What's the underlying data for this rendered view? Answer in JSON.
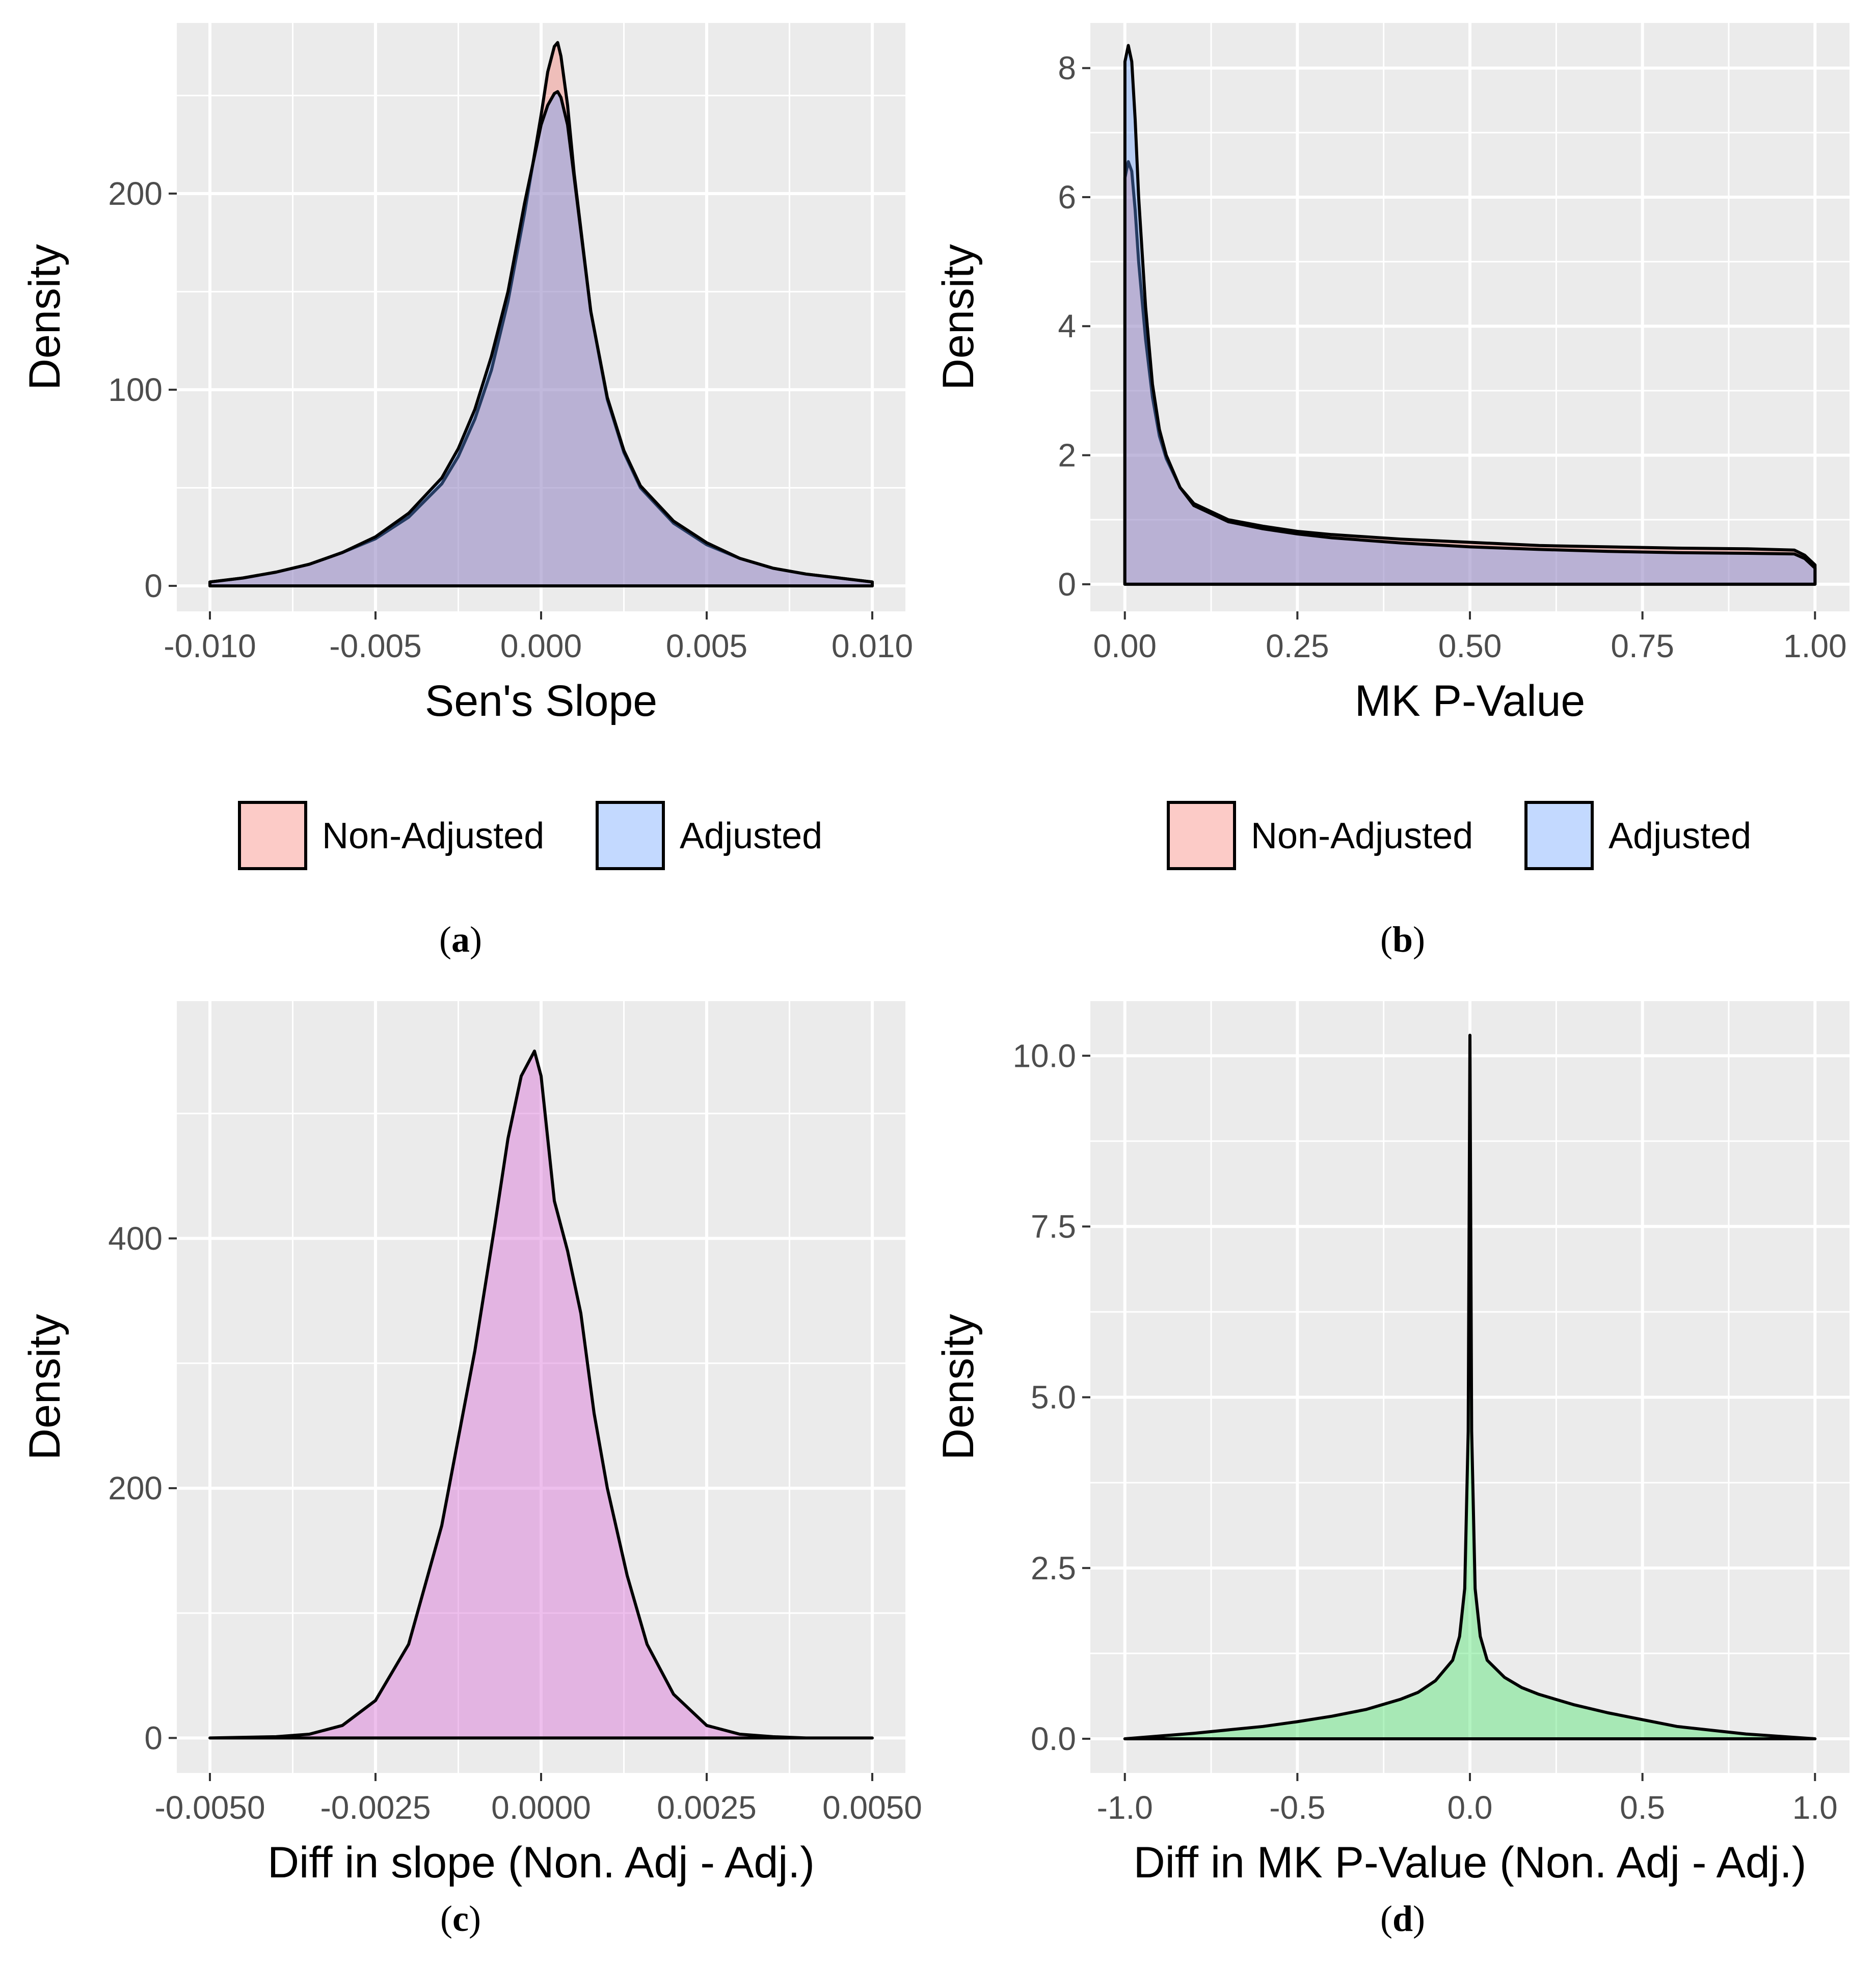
{
  "chart_data": [
    {
      "id": "a",
      "type": "area",
      "panel_label": "a",
      "xlabel": "Sen's Slope",
      "ylabel": "Density",
      "xlim": [
        -0.011,
        0.011
      ],
      "ylim": [
        -13,
        287
      ],
      "x_ticks": [
        -0.01,
        -0.005,
        0,
        0.005,
        0.01
      ],
      "x_tick_labels": [
        "-0.010",
        "-0.005",
        "0.000",
        "0.005",
        "0.010"
      ],
      "y_ticks": [
        0,
        100,
        200
      ],
      "y_tick_labels": [
        "0",
        "100",
        "200"
      ],
      "legend": {
        "position": "bottom",
        "entries": [
          {
            "name": "Non-Adjusted",
            "color": "#f8766d"
          },
          {
            "name": "Adjusted",
            "color": "#619cff"
          }
        ]
      },
      "series": [
        {
          "name": "Non-Adjusted",
          "color": "#f8766d",
          "x": [
            -0.01,
            -0.009,
            -0.008,
            -0.007,
            -0.006,
            -0.005,
            -0.004,
            -0.003,
            -0.0025,
            -0.002,
            -0.0015,
            -0.001,
            -0.0005,
            0,
            0.0002,
            0.0004,
            0.0005,
            0.0006,
            0.0008,
            0.001,
            0.0015,
            0.002,
            0.0025,
            0.003,
            0.004,
            0.005,
            0.006,
            0.007,
            0.008,
            0.009,
            0.01
          ],
          "values": [
            2,
            4,
            7,
            11,
            17,
            24,
            35,
            52,
            66,
            85,
            110,
            145,
            190,
            240,
            262,
            275,
            277,
            270,
            245,
            210,
            140,
            95,
            68,
            50,
            32,
            21,
            14,
            9,
            6,
            4,
            2
          ]
        },
        {
          "name": "Adjusted",
          "color": "#619cff",
          "x": [
            -0.01,
            -0.009,
            -0.008,
            -0.007,
            -0.006,
            -0.005,
            -0.004,
            -0.003,
            -0.0025,
            -0.002,
            -0.0015,
            -0.001,
            -0.0005,
            0,
            0.0002,
            0.0004,
            0.0005,
            0.0006,
            0.0008,
            0.001,
            0.0015,
            0.002,
            0.0025,
            0.003,
            0.004,
            0.005,
            0.006,
            0.007,
            0.008,
            0.009,
            0.01
          ],
          "values": [
            2,
            4,
            7,
            11,
            17,
            25,
            37,
            55,
            70,
            90,
            117,
            150,
            195,
            235,
            245,
            251,
            252,
            249,
            235,
            208,
            140,
            96,
            69,
            51,
            33,
            22,
            14,
            9,
            6,
            4,
            2
          ]
        }
      ]
    },
    {
      "id": "b",
      "type": "area",
      "panel_label": "b",
      "xlabel": "MK P-Value",
      "ylabel": "Density",
      "xlim": [
        -0.05,
        1.05
      ],
      "ylim": [
        -0.42,
        8.7
      ],
      "x_ticks": [
        0,
        0.25,
        0.5,
        0.75,
        1
      ],
      "x_tick_labels": [
        "0.00",
        "0.25",
        "0.50",
        "0.75",
        "1.00"
      ],
      "y_ticks": [
        0,
        2,
        4,
        6,
        8
      ],
      "y_tick_labels": [
        "0",
        "2",
        "4",
        "6",
        "8"
      ],
      "legend": {
        "position": "bottom",
        "entries": [
          {
            "name": "Non-Adjusted",
            "color": "#f8766d"
          },
          {
            "name": "Adjusted",
            "color": "#619cff"
          }
        ]
      },
      "series": [
        {
          "name": "Non-Adjusted",
          "color": "#f8766d",
          "x": [
            0,
            0.0001,
            0.005,
            0.01,
            0.015,
            0.02,
            0.03,
            0.04,
            0.05,
            0.06,
            0.08,
            0.1,
            0.15,
            0.2,
            0.25,
            0.3,
            0.4,
            0.5,
            0.6,
            0.7,
            0.8,
            0.9,
            0.97,
            0.985,
            1
          ],
          "values": [
            0,
            6.3,
            6.55,
            6.4,
            5.8,
            5.0,
            3.8,
            2.9,
            2.3,
            1.95,
            1.5,
            1.25,
            1.0,
            0.9,
            0.82,
            0.77,
            0.7,
            0.65,
            0.6,
            0.58,
            0.56,
            0.55,
            0.53,
            0.45,
            0.3
          ]
        },
        {
          "name": "Adjusted",
          "color": "#619cff",
          "x": [
            0,
            0.0001,
            0.005,
            0.01,
            0.015,
            0.02,
            0.03,
            0.04,
            0.05,
            0.06,
            0.08,
            0.1,
            0.15,
            0.2,
            0.25,
            0.3,
            0.4,
            0.5,
            0.6,
            0.7,
            0.8,
            0.9,
            0.97,
            0.985,
            1
          ],
          "values": [
            0,
            8.1,
            8.35,
            8.1,
            7.2,
            6.0,
            4.3,
            3.1,
            2.4,
            2.0,
            1.5,
            1.22,
            0.97,
            0.86,
            0.78,
            0.72,
            0.64,
            0.58,
            0.54,
            0.51,
            0.49,
            0.48,
            0.47,
            0.4,
            0.25
          ]
        }
      ]
    },
    {
      "id": "c",
      "type": "area",
      "panel_label": "c",
      "xlabel": "Diff in slope (Non. Adj - Adj.)",
      "ylabel": "Density",
      "xlim": [
        -0.0055,
        0.0055
      ],
      "ylim": [
        -28,
        590
      ],
      "x_ticks": [
        -0.005,
        -0.0025,
        0,
        0.0025,
        0.005
      ],
      "x_tick_labels": [
        "-0.0050",
        "-0.0025",
        "0.0000",
        "0.0025",
        "0.0050"
      ],
      "y_ticks": [
        0,
        200,
        400
      ],
      "y_tick_labels": [
        "0",
        "200",
        "400"
      ],
      "series": [
        {
          "name": "Diff in slope",
          "color": "#da70d6",
          "x": [
            -0.005,
            -0.004,
            -0.0035,
            -0.003,
            -0.0025,
            -0.002,
            -0.0015,
            -0.001,
            -0.0007,
            -0.0005,
            -0.0003,
            -0.0001,
            0,
            0.0002,
            0.0004,
            0.0006,
            0.0008,
            0.001,
            0.0013,
            0.0016,
            0.002,
            0.0025,
            0.003,
            0.0035,
            0.004,
            0.005
          ],
          "values": [
            0,
            1,
            3,
            10,
            30,
            75,
            170,
            310,
            410,
            480,
            530,
            550,
            530,
            430,
            390,
            340,
            260,
            200,
            130,
            75,
            35,
            10,
            3,
            1,
            0,
            0
          ]
        }
      ]
    },
    {
      "id": "d",
      "type": "area",
      "panel_label": "d",
      "xlabel": "Diff in MK P-Value (Non. Adj - Adj.)",
      "ylabel": "Density",
      "xlim": [
        -1.1,
        1.1
      ],
      "ylim": [
        -0.5,
        10.8
      ],
      "x_ticks": [
        -1,
        -0.5,
        0,
        0.5,
        1
      ],
      "x_tick_labels": [
        "-1.0",
        "-0.5",
        "0.0",
        "0.5",
        "1.0"
      ],
      "y_ticks": [
        0,
        2.5,
        5,
        7.5,
        10
      ],
      "y_tick_labels": [
        "0.0",
        "2.5",
        "5.0",
        "7.5",
        "10.0"
      ],
      "series": [
        {
          "name": "Diff in MK P-Value",
          "color": "#54e573",
          "x": [
            -1,
            -0.8,
            -0.6,
            -0.5,
            -0.4,
            -0.3,
            -0.2,
            -0.15,
            -0.1,
            -0.05,
            -0.03,
            -0.015,
            -0.005,
            0,
            0.005,
            0.015,
            0.03,
            0.05,
            0.1,
            0.15,
            0.2,
            0.3,
            0.4,
            0.5,
            0.6,
            0.8,
            1
          ],
          "values": [
            0,
            0.08,
            0.18,
            0.25,
            0.33,
            0.43,
            0.58,
            0.68,
            0.85,
            1.15,
            1.5,
            2.2,
            4.5,
            10.3,
            4.5,
            2.2,
            1.5,
            1.15,
            0.9,
            0.75,
            0.65,
            0.5,
            0.38,
            0.28,
            0.18,
            0.07,
            0
          ]
        }
      ]
    }
  ]
}
